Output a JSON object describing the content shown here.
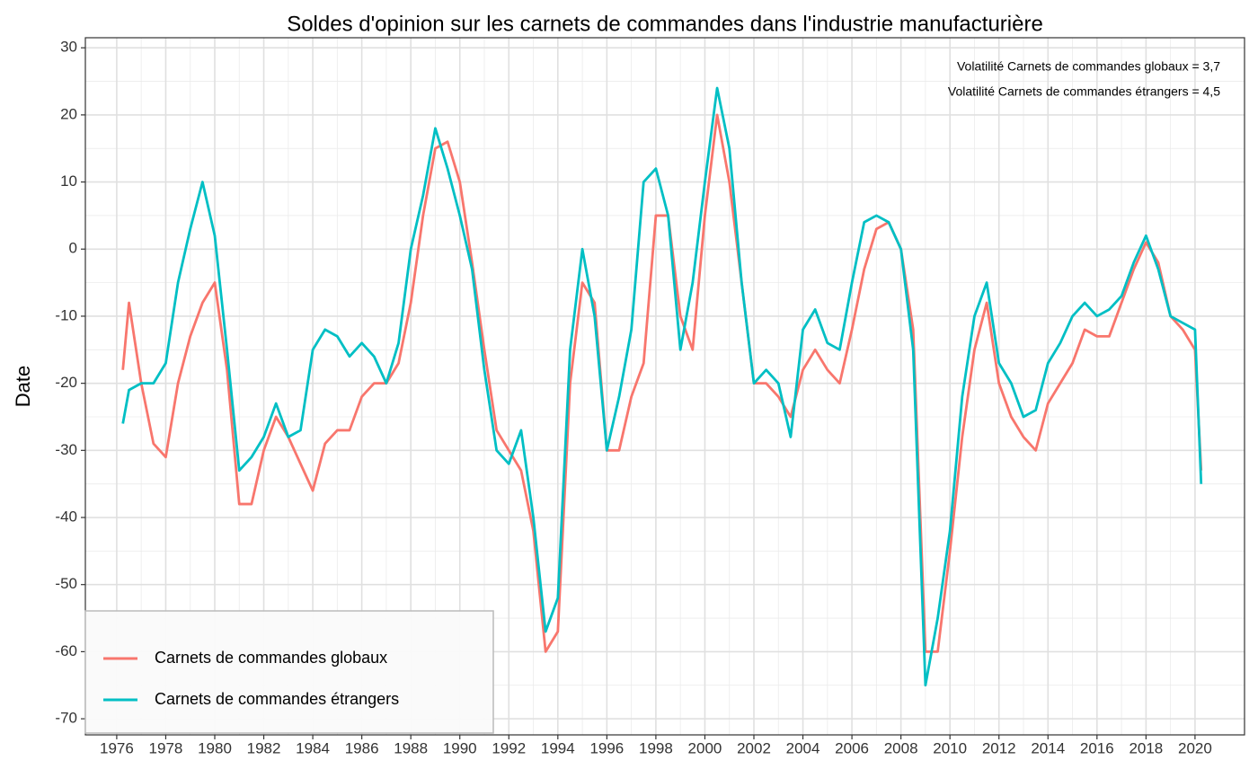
{
  "chart_data": {
    "type": "line",
    "title": "Soldes d'opinion sur les carnets de commandes dans l'industrie manufacturière",
    "y_label": "Date",
    "annotations": [
      "Volatilité Carnets de commandes globaux = 3,7",
      "Volatilité Carnets de commandes étrangers = 4,5"
    ],
    "x": [
      1976.25,
      1976.5,
      1977,
      1977.5,
      1978,
      1978.5,
      1979,
      1979.5,
      1980,
      1980.5,
      1981,
      1981.5,
      1982,
      1982.5,
      1983,
      1983.5,
      1984,
      1984.5,
      1985,
      1985.5,
      1986,
      1986.5,
      1987,
      1987.5,
      1988,
      1988.5,
      1989,
      1989.5,
      1990,
      1990.5,
      1991,
      1991.5,
      1992,
      1992.5,
      1993,
      1993.5,
      1994,
      1994.5,
      1995,
      1995.5,
      1996,
      1996.5,
      1997,
      1997.5,
      1998,
      1998.5,
      1999,
      1999.5,
      2000,
      2000.5,
      2001,
      2001.5,
      2002,
      2002.5,
      2003,
      2003.5,
      2004,
      2004.5,
      2005,
      2005.5,
      2006,
      2006.5,
      2007,
      2007.5,
      2008,
      2008.5,
      2009,
      2009.5,
      2010,
      2010.5,
      2011,
      2011.5,
      2012,
      2012.5,
      2013,
      2013.5,
      2014,
      2014.5,
      2015,
      2015.5,
      2016,
      2016.5,
      2017,
      2017.5,
      2018,
      2018.5,
      2019,
      2019.5,
      2020,
      2020.25
    ],
    "series": [
      {
        "name": "Carnets de commandes globaux",
        "color": "#F8766D",
        "values": [
          -18,
          -8,
          -20,
          -29,
          -31,
          -20,
          -13,
          -8,
          -5,
          -18,
          -38,
          -38,
          -30,
          -25,
          -28,
          -32,
          -36,
          -29,
          -27,
          -27,
          -22,
          -20,
          -20,
          -17,
          -8,
          5,
          15,
          16,
          10,
          -2,
          -15,
          -27,
          -30,
          -33,
          -42,
          -60,
          -57,
          -20,
          -5,
          -8,
          -30,
          -30,
          -22,
          -17,
          5,
          5,
          -10,
          -15,
          5,
          20,
          10,
          -5,
          -20,
          -20,
          -22,
          -25,
          -18,
          -15,
          -18,
          -20,
          -12,
          -3,
          3,
          4,
          0,
          -12,
          -60,
          -60,
          -45,
          -28,
          -15,
          -8,
          -20,
          -25,
          -28,
          -30,
          -23,
          -20,
          -17,
          -12,
          -13,
          -13,
          -8,
          -3,
          1,
          -2,
          -10,
          -12,
          -15,
          -33
        ]
      },
      {
        "name": "Carnets de commandes étrangers",
        "color": "#00BFC4",
        "values": [
          -26,
          -21,
          -20,
          -20,
          -17,
          -5,
          3,
          10,
          2,
          -15,
          -33,
          -31,
          -28,
          -23,
          -28,
          -27,
          -15,
          -12,
          -13,
          -16,
          -14,
          -16,
          -20,
          -14,
          0,
          8,
          18,
          12,
          5,
          -3,
          -18,
          -30,
          -32,
          -27,
          -40,
          -57,
          -52,
          -15,
          0,
          -10,
          -30,
          -22,
          -12,
          10,
          12,
          5,
          -15,
          -5,
          10,
          24,
          15,
          -5,
          -20,
          -18,
          -20,
          -28,
          -12,
          -9,
          -14,
          -15,
          -5,
          4,
          5,
          4,
          0,
          -15,
          -65,
          -55,
          -42,
          -22,
          -10,
          -5,
          -17,
          -20,
          -25,
          -24,
          -17,
          -14,
          -10,
          -8,
          -10,
          -9,
          -7,
          -2,
          2,
          -3,
          -10,
          -11,
          -12,
          -35
        ]
      }
    ],
    "xlim": [
      1974.72,
      2022.02
    ],
    "xticks": [
      1976,
      1978,
      1980,
      1982,
      1984,
      1986,
      1988,
      1990,
      1992,
      1994,
      1996,
      1998,
      2000,
      2002,
      2004,
      2006,
      2008,
      2010,
      2012,
      2014,
      2016,
      2018,
      2020
    ],
    "ylim": [
      -72.4,
      31.5
    ],
    "yticks": [
      -70,
      -60,
      -50,
      -40,
      -30,
      -20,
      -10,
      0,
      10,
      20,
      30
    ],
    "grid": true,
    "legend": "bottom-left"
  }
}
